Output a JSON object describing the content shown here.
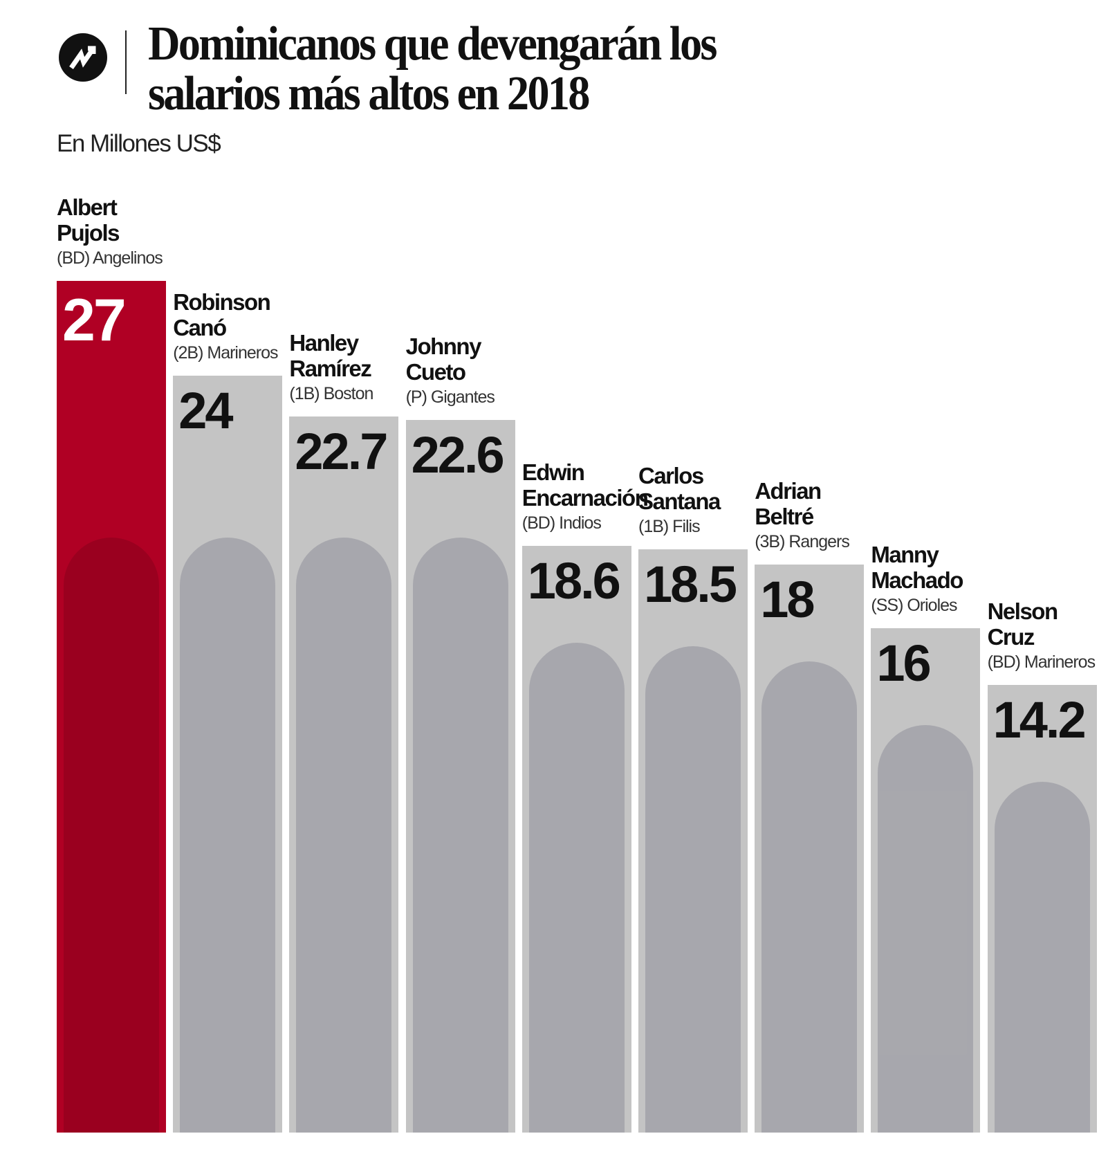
{
  "header": {
    "title_line1": "Dominicanos que devengarán los",
    "title_line2": "salarios más altos en 2018",
    "subtitle": "En Millones US$",
    "logo_icon": "trend-arrow-icon"
  },
  "colors": {
    "highlight": "#b00024",
    "bar": "#c4c4c4"
  },
  "chart_data": {
    "type": "bar",
    "title": "Dominicanos que devengarán los salarios más altos en 2018",
    "ylabel": "En Millones US$",
    "ylim": [
      0,
      27
    ],
    "grid": false,
    "categories": [
      "Albert Pujols",
      "Robinson Canó",
      "Hanley Ramírez",
      "Johnny Cueto",
      "Edwin Encarnación",
      "Carlos Santana",
      "Adrian Beltré",
      "Manny Machado",
      "Nelson Cruz"
    ],
    "values": [
      27,
      24,
      22.7,
      22.6,
      18.6,
      18.5,
      18,
      16,
      14.2
    ],
    "value_labels": [
      "27",
      "24",
      "22.7",
      "22.6",
      "18.6",
      "18.5",
      "18",
      "16",
      "14.2"
    ],
    "players": [
      {
        "first": "Albert",
        "last": "Pujols",
        "team": "(BD) Angelinos"
      },
      {
        "first": "Robinson",
        "last": "Canó",
        "team": "(2B) Marineros"
      },
      {
        "first": "Hanley",
        "last": "Ramírez",
        "team": "(1B) Boston"
      },
      {
        "first": "Johnny",
        "last": "Cueto",
        "team": "(P) Gigantes"
      },
      {
        "first": "Edwin",
        "last": "Encarnación",
        "team": "(BD) Indios"
      },
      {
        "first": "Carlos",
        "last": "Santana",
        "team": "(1B) Filis"
      },
      {
        "first": "Adrian",
        "last": "Beltré",
        "team": "(3B) Rangers"
      },
      {
        "first": "Manny",
        "last": "Machado",
        "team": "(SS) Orioles"
      },
      {
        "first": "Nelson",
        "last": "Cruz",
        "team": "(BD) Marineros"
      }
    ]
  }
}
